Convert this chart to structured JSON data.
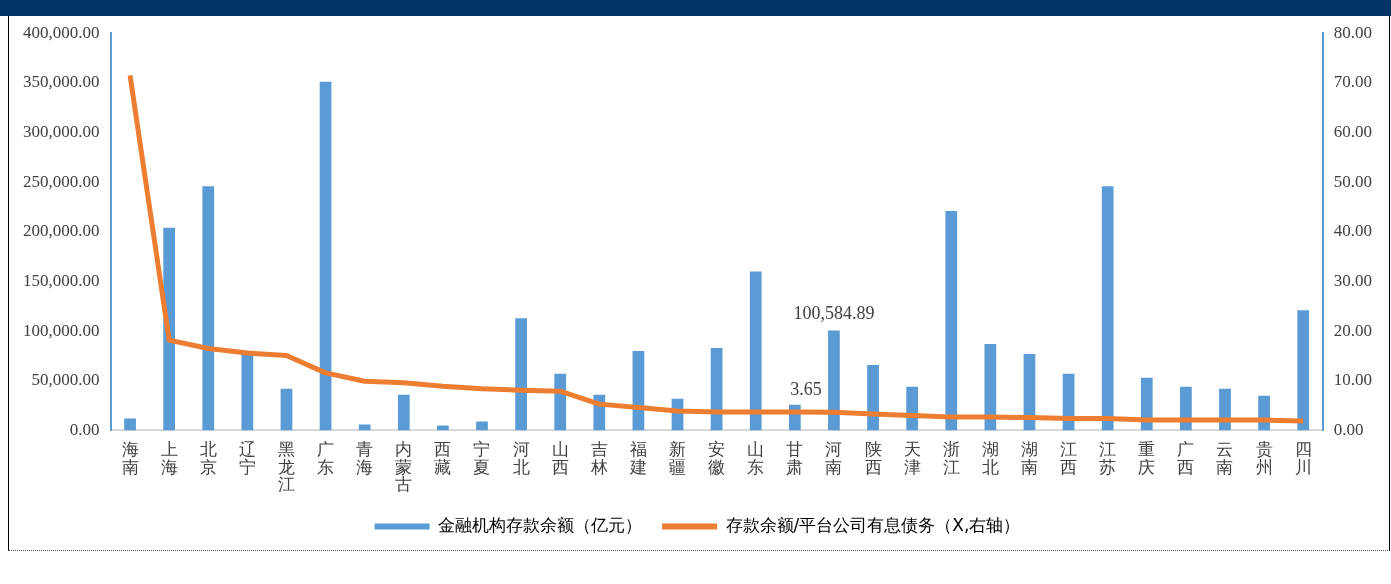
{
  "chart_data": {
    "type": "bar",
    "categories": [
      "海南",
      "上海",
      "北京",
      "辽宁",
      "黑龙江",
      "广东",
      "青海",
      "内蒙古",
      "西藏",
      "宁夏",
      "河北",
      "山西",
      "吉林",
      "福建",
      "新疆",
      "安徽",
      "山东",
      "甘肃",
      "河南",
      "陕西",
      "天津",
      "浙江",
      "湖北",
      "湖南",
      "江西",
      "江苏",
      "重庆",
      "广西",
      "云南",
      "贵州",
      "四川"
    ],
    "series": [
      {
        "name": "金融机构存款余额（亿元）",
        "color": "#5b9bd5",
        "values": [
          12000,
          204000,
          246000,
          77000,
          42000,
          351000,
          6000,
          36000,
          5000,
          9000,
          113000,
          57000,
          36000,
          80000,
          32000,
          83000,
          160000,
          26000,
          100584.89,
          66000,
          44000,
          221000,
          87000,
          77000,
          57000,
          246000,
          53000,
          44000,
          42000,
          35000,
          121000
        ],
        "value_labels": [
          null,
          null,
          null,
          null,
          null,
          null,
          null,
          null,
          null,
          null,
          null,
          null,
          null,
          null,
          null,
          null,
          null,
          null,
          "100,584.89",
          null,
          null,
          null,
          null,
          null,
          null,
          null,
          null,
          null,
          null,
          null,
          null
        ]
      },
      {
        "name": "存款余额/平台公司有息债务（X,右轴）",
        "type": "line",
        "axis": "y2",
        "color": "#ed7d31",
        "values": [
          71.5,
          18.2,
          16.5,
          15.6,
          15.1,
          11.6,
          9.9,
          9.6,
          8.9,
          8.4,
          8.1,
          7.9,
          5.3,
          4.6,
          3.9,
          3.7,
          3.7,
          3.7,
          3.65,
          3.3,
          3.0,
          2.7,
          2.7,
          2.6,
          2.4,
          2.4,
          2.1,
          2.1,
          2.1,
          2.1,
          1.9
        ],
        "value_labels": [
          null,
          null,
          null,
          null,
          null,
          null,
          null,
          null,
          null,
          null,
          null,
          null,
          null,
          null,
          null,
          null,
          null,
          null,
          "3.65",
          null,
          null,
          null,
          null,
          null,
          null,
          null,
          null,
          null,
          null,
          null,
          null
        ]
      }
    ],
    "ylim": [
      0,
      400000
    ],
    "yticks": [
      {
        "value": 0,
        "label": "0.00"
      },
      {
        "value": 50000,
        "label": "50,000.00"
      },
      {
        "value": 100000,
        "label": "100,000.00"
      },
      {
        "value": 150000,
        "label": "150,000.00"
      },
      {
        "value": 200000,
        "label": "200,000.00"
      },
      {
        "value": 250000,
        "label": "250,000.00"
      },
      {
        "value": 300000,
        "label": "300,000.00"
      },
      {
        "value": 350000,
        "label": "350,000.00"
      },
      {
        "value": 400000,
        "label": "400,000.00"
      }
    ],
    "y2lim": [
      0,
      80
    ],
    "y2ticks": [
      {
        "value": 0,
        "label": "0.00"
      },
      {
        "value": 10,
        "label": "10.00"
      },
      {
        "value": 20,
        "label": "20.00"
      },
      {
        "value": 30,
        "label": "30.00"
      },
      {
        "value": 40,
        "label": "40.00"
      },
      {
        "value": 50,
        "label": "50.00"
      },
      {
        "value": 60,
        "label": "60.00"
      },
      {
        "value": 70,
        "label": "70.00"
      },
      {
        "value": 80,
        "label": "80.00"
      }
    ],
    "grid": false,
    "legend": "bottom",
    "marker": "none",
    "line_style": "solid"
  }
}
